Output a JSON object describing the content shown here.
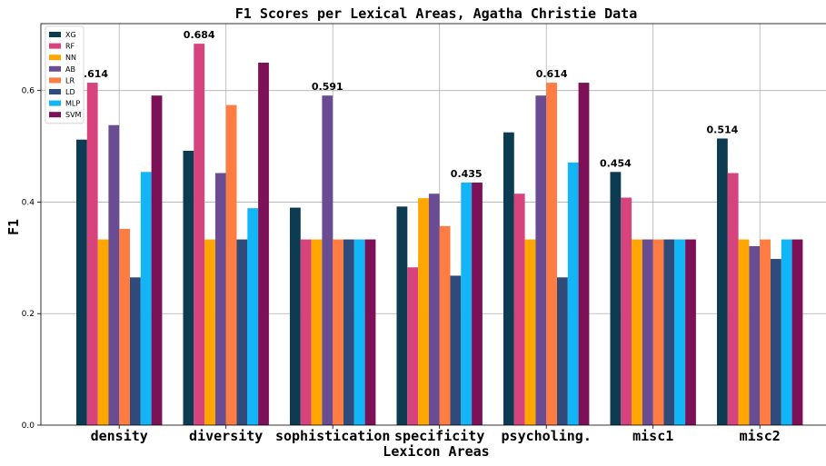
{
  "chart_data": {
    "type": "bar",
    "title": "F1 Scores per Lexical Areas, Agatha Christie Data",
    "xlabel": "Lexicon Areas",
    "ylabel": "F1",
    "ylim": [
      0,
      0.72
    ],
    "yticks": [
      0.0,
      0.2,
      0.4,
      0.6
    ],
    "ytick_labels": [
      "0.0",
      "0.2",
      "0.4",
      "0.6"
    ],
    "grid": true,
    "legend_position": "top-left",
    "categories": [
      "density",
      "diversity",
      "sophistication",
      "specificity",
      "psycholing.",
      "misc1",
      "misc2"
    ],
    "series": [
      {
        "name": "XG",
        "color": "#0d3b52",
        "values": [
          0.512,
          0.492,
          0.39,
          0.392,
          0.525,
          0.454,
          0.514
        ]
      },
      {
        "name": "RF",
        "color": "#d6437d",
        "values": [
          0.614,
          0.684,
          0.333,
          0.283,
          0.415,
          0.408,
          0.452
        ]
      },
      {
        "name": "NN",
        "color": "#ffa600",
        "values": [
          0.333,
          0.333,
          0.333,
          0.407,
          0.333,
          0.333,
          0.333
        ]
      },
      {
        "name": "AB",
        "color": "#6a4c93",
        "values": [
          0.538,
          0.452,
          0.591,
          0.415,
          0.591,
          0.333,
          0.321
        ]
      },
      {
        "name": "LR",
        "color": "#ff7c43",
        "values": [
          0.352,
          0.574,
          0.333,
          0.357,
          0.614,
          0.333,
          0.333
        ]
      },
      {
        "name": "LD",
        "color": "#2f4b7c",
        "values": [
          0.265,
          0.333,
          0.333,
          0.268,
          0.265,
          0.333,
          0.298
        ]
      },
      {
        "name": "MLP",
        "color": "#12b5f5",
        "values": [
          0.454,
          0.389,
          0.333,
          0.435,
          0.471,
          0.333,
          0.333
        ]
      },
      {
        "name": "SVM",
        "color": "#7c1158",
        "values": [
          0.591,
          0.65,
          0.333,
          0.435,
          0.614,
          0.333,
          0.333
        ]
      }
    ],
    "annotations": [
      {
        "category": "density",
        "text": "0.614"
      },
      {
        "category": "diversity",
        "text": "0.684"
      },
      {
        "category": "sophistication",
        "text": "0.591"
      },
      {
        "category": "specificity",
        "text": "0.435"
      },
      {
        "category": "psycholing.",
        "text": "0.614"
      },
      {
        "category": "misc1",
        "text": "0.454"
      },
      {
        "category": "misc2",
        "text": "0.514"
      }
    ]
  }
}
